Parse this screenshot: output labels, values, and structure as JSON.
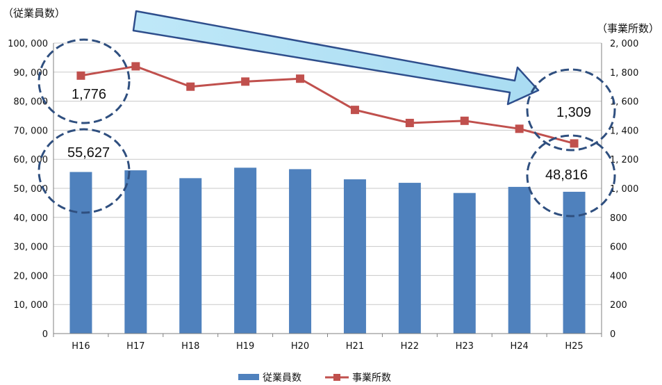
{
  "chart_data": {
    "type": "bar",
    "categories": [
      "H16",
      "H17",
      "H18",
      "H19",
      "H20",
      "H21",
      "H22",
      "H23",
      "H24",
      "H25"
    ],
    "series": [
      {
        "name": "従業員数",
        "type": "bar",
        "axis": "left",
        "color": "#4f81bd",
        "values": [
          55627,
          56200,
          53500,
          57100,
          56600,
          53100,
          51900,
          48400,
          50500,
          48816
        ]
      },
      {
        "name": "事業所数",
        "type": "line",
        "axis": "right",
        "color": "#c0504d",
        "values": [
          1776,
          1840,
          1700,
          1735,
          1755,
          1540,
          1450,
          1465,
          1410,
          1309
        ]
      }
    ],
    "ylabel_left": "（従業員数）",
    "ylabel_right": "（事業所数）",
    "ylim_left": [
      0,
      100000
    ],
    "ylim_right": [
      0,
      2000
    ],
    "yticks_left": [
      "0",
      "10, 000",
      "20, 000",
      "30, 000",
      "40, 000",
      "50, 000",
      "60, 000",
      "70, 000",
      "80, 000",
      "90, 000",
      "100, 000"
    ],
    "yticks_right": [
      "0",
      "200",
      "400",
      "600",
      "800",
      "1, 000",
      "1, 200",
      "1, 400",
      "1, 600",
      "1, 800",
      "2, 000"
    ],
    "grid": true,
    "legend_position": "bottom",
    "annotations": {
      "line_first": "1,776",
      "line_last": "1,309",
      "bar_first": "55,627",
      "bar_last": "48,816"
    },
    "trend_arrow": "decreasing"
  }
}
